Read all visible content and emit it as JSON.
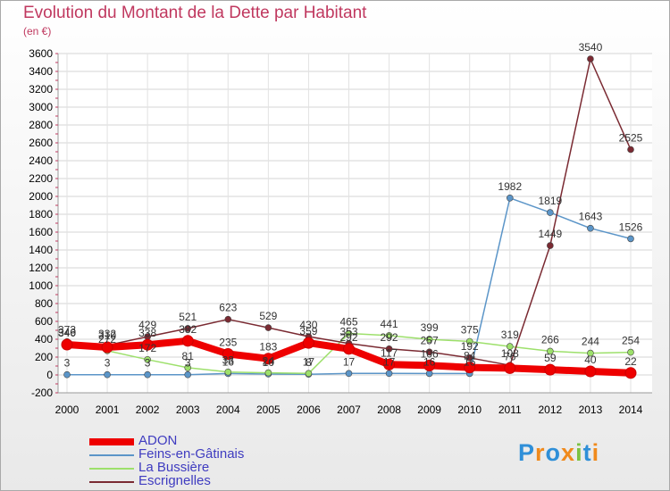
{
  "chart_data": {
    "type": "line",
    "title": "Evolution du Montant de la Dette par Habitant",
    "unit_label": "(en €)",
    "x": [
      "2000",
      "2001",
      "2002",
      "2003",
      "2004",
      "2005",
      "2006",
      "2007",
      "2008",
      "2009",
      "2010",
      "2011",
      "2012",
      "2013",
      "2014"
    ],
    "ylim": [
      -200,
      3600
    ],
    "yticks": [
      -200,
      0,
      200,
      400,
      600,
      800,
      1000,
      1200,
      1400,
      1600,
      1800,
      2000,
      2200,
      2400,
      2600,
      2800,
      3000,
      3200,
      3400,
      3600
    ],
    "grid": true,
    "series": [
      {
        "name": "Feins-en-Gâtinais",
        "color": "#5b95c8",
        "values": [
          3,
          3,
          3,
          3,
          16,
          10,
          8,
          17,
          17,
          16,
          16,
          1982,
          1819,
          1643,
          1526
        ],
        "labels": [
          "3",
          "3",
          "3",
          "3",
          "16",
          "10",
          "8",
          "17",
          "17",
          "16",
          "16",
          "1982",
          "1819",
          "1643",
          "1526"
        ]
      },
      {
        "name": "La Bussière",
        "color": "#9de06b",
        "values": [
          373,
          272,
          172,
          81,
          33,
          24,
          17,
          465,
          441,
          399,
          375,
          319,
          266,
          244,
          254
        ],
        "labels": [
          "373",
          "272",
          "172",
          "81",
          "33",
          "24",
          "17",
          "465",
          "441",
          "399",
          "375",
          "319",
          "266",
          "244",
          "254"
        ]
      },
      {
        "name": "Escrignelles",
        "color": "#7a2a32",
        "values": [
          346,
          332,
          429,
          521,
          623,
          529,
          430,
          353,
          292,
          257,
          192,
          108,
          1449,
          3540,
          2525
        ],
        "labels": [
          "346",
          "332",
          "429",
          "521",
          "623",
          "529",
          "430",
          "353",
          "292",
          "257",
          "192",
          "108",
          "1449",
          "3540",
          "2525"
        ]
      },
      {
        "name": "ADON",
        "color": "#ee0000",
        "values": [
          340,
          310,
          338,
          382,
          235,
          183,
          359,
          292,
          117,
          106,
          84,
          76,
          59,
          40,
          22
        ],
        "labels": [
          "340",
          "310",
          "338",
          "382",
          "235",
          "183",
          "359",
          "292",
          "117",
          "106",
          "84",
          "76",
          "59",
          "40",
          "22"
        ]
      }
    ],
    "legend_order": [
      "ADON",
      "Feins-en-Gâtinais",
      "La Bussière",
      "Escrignelles"
    ]
  },
  "logo": {
    "text": "Proxiti",
    "letters": [
      "P",
      "r",
      "o",
      "x",
      "i",
      "t",
      "i"
    ],
    "colors": [
      "#2f8fd8",
      "#f08a1c",
      "#2f8fd8",
      "#f08a1c",
      "#7cc242",
      "#2f8fd8",
      "#f08a1c"
    ]
  }
}
